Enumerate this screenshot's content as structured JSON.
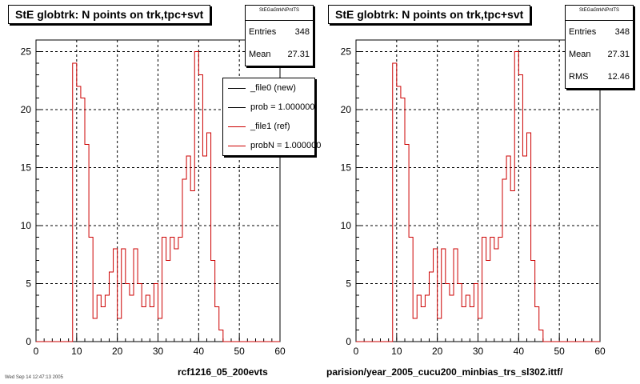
{
  "colors": {
    "ref_line": "#cc0000",
    "new_line": "#000000",
    "grid": "#000000"
  },
  "panels": [
    {
      "title": "StE globtrk: N points on trk,tpc+svt",
      "stats": {
        "name": "StEGaGtrkNPntTS",
        "rows": [
          {
            "label": "Entries",
            "value": "348"
          },
          {
            "label": "Mean",
            "value": "27.31"
          }
        ]
      },
      "bottom_label": "rcf1216_05_200evts",
      "legend": [
        {
          "label": "_file0 (new)",
          "color": "#000000"
        },
        {
          "label": "prob = 1.000000",
          "color": "#000000"
        },
        {
          "label": "_file1 (ref)",
          "color": "#cc0000"
        },
        {
          "label": "probN = 1.000000",
          "color": "#cc0000"
        }
      ]
    },
    {
      "title": "StE globtrk: N points on trk,tpc+svt",
      "stats": {
        "name": "StEGaGtrkNPntTS",
        "rows": [
          {
            "label": "Entries",
            "value": "348"
          },
          {
            "label": "Mean",
            "value": "27.31"
          },
          {
            "label": "RMS",
            "value": "12.46"
          }
        ]
      },
      "bottom_label": "parision/year_2005_cucu200_minbias_trs_sl302.ittf/"
    }
  ],
  "footer_text": "Wed Sep 14 12:47:13 2005",
  "chart_data": [
    {
      "type": "histogram",
      "title": "StE globtrk: N points on trk,tpc+svt",
      "xlim": [
        0,
        60
      ],
      "ylim": [
        0,
        26
      ],
      "xticks": [
        0,
        10,
        20,
        30,
        40,
        50,
        60
      ],
      "yticks": [
        0,
        5,
        10,
        15,
        20,
        25
      ],
      "grid": true,
      "bin_width": 1,
      "series": [
        {
          "name": "_file1 (ref)",
          "bin_edges": [
            9,
            10,
            11,
            12,
            13,
            14,
            15,
            16,
            17,
            18,
            19,
            20,
            21,
            22,
            23,
            24,
            25,
            26,
            27,
            28,
            29,
            30,
            31,
            32,
            33,
            34,
            35,
            36,
            37,
            38,
            39,
            40,
            41,
            42,
            43,
            44,
            45,
            46,
            47
          ],
          "values": [
            24,
            22,
            21,
            17,
            9,
            2,
            4,
            3,
            4,
            6,
            8,
            2,
            8,
            5,
            4,
            8,
            5,
            3,
            4,
            3,
            5,
            2,
            9,
            7,
            9,
            8,
            9,
            14,
            16,
            13,
            25,
            23,
            16,
            18,
            7,
            3,
            1,
            0
          ]
        }
      ]
    },
    {
      "type": "histogram",
      "title": "StE globtrk: N points on trk,tpc+svt",
      "xlim": [
        0,
        60
      ],
      "ylim": [
        0,
        26
      ],
      "xticks": [
        0,
        10,
        20,
        30,
        40,
        50,
        60
      ],
      "yticks": [
        0,
        5,
        10,
        15,
        20,
        25
      ],
      "grid": true,
      "bin_width": 1,
      "series": [
        {
          "bin_edges": [
            9,
            10,
            11,
            12,
            13,
            14,
            15,
            16,
            17,
            18,
            19,
            20,
            21,
            22,
            23,
            24,
            25,
            26,
            27,
            28,
            29,
            30,
            31,
            32,
            33,
            34,
            35,
            36,
            37,
            38,
            39,
            40,
            41,
            42,
            43,
            44,
            45,
            46,
            47
          ],
          "values": [
            24,
            22,
            21,
            17,
            9,
            2,
            4,
            3,
            4,
            6,
            8,
            2,
            8,
            5,
            4,
            8,
            5,
            3,
            4,
            3,
            5,
            2,
            9,
            7,
            9,
            8,
            9,
            14,
            16,
            13,
            25,
            23,
            16,
            18,
            7,
            3,
            1,
            0
          ]
        }
      ]
    }
  ]
}
